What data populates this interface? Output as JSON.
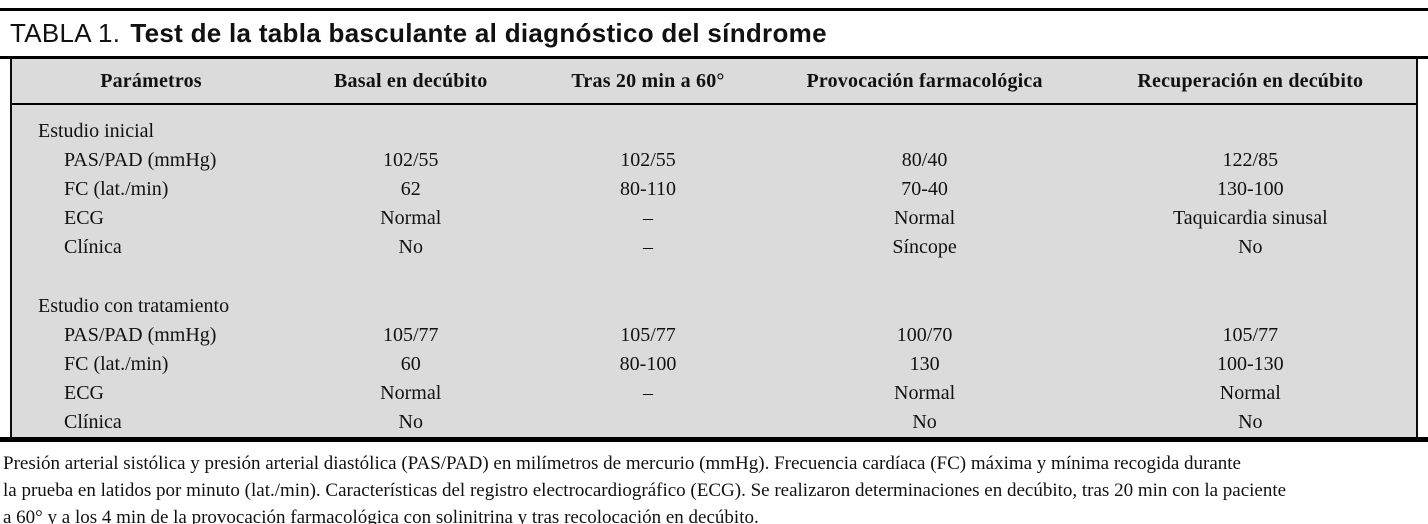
{
  "title": {
    "label": "TABLA 1.",
    "text": "Test de la tabla basculante al diagnóstico del síndrome"
  },
  "table": {
    "headers": [
      "Parámetros",
      "Basal en decúbito",
      "Tras 20 min a 60°",
      "Provocación farmacológica",
      "Recuperación en decúbito"
    ],
    "rows": [
      {
        "type": "section",
        "c0": "Estudio inicial",
        "c1": "",
        "c2": "",
        "c3": "",
        "c4": ""
      },
      {
        "type": "item",
        "c0": "PAS/PAD (mmHg)",
        "c1": "102/55",
        "c2": "102/55",
        "c3": "80/40",
        "c4": "122/85"
      },
      {
        "type": "item",
        "c0": "FC (lat./min)",
        "c1": "62",
        "c2": "80-110",
        "c3": "70-40",
        "c4": "130-100"
      },
      {
        "type": "item",
        "c0": "ECG",
        "c1": "Normal",
        "c2": "–",
        "c3": "Normal",
        "c4": "Taquicardia sinusal"
      },
      {
        "type": "item",
        "c0": "Clínica",
        "c1": "No",
        "c2": "–",
        "c3": "Síncope",
        "c4": "No"
      },
      {
        "type": "spacer",
        "c0": "",
        "c1": "",
        "c2": "",
        "c3": "",
        "c4": ""
      },
      {
        "type": "section",
        "c0": "Estudio con tratamiento",
        "c1": "",
        "c2": "",
        "c3": "",
        "c4": ""
      },
      {
        "type": "item",
        "c0": "PAS/PAD (mmHg)",
        "c1": "105/77",
        "c2": "105/77",
        "c3": "100/70",
        "c4": "105/77"
      },
      {
        "type": "item",
        "c0": "FC (lat./min)",
        "c1": "60",
        "c2": "80-100",
        "c3": "130",
        "c4": "100-130"
      },
      {
        "type": "item",
        "c0": "ECG",
        "c1": "Normal",
        "c2": "–",
        "c3": "Normal",
        "c4": "Normal"
      },
      {
        "type": "item",
        "c0": "Clínica",
        "c1": "No",
        "c2": "",
        "c3": "No",
        "c4": "No"
      }
    ]
  },
  "footnote": {
    "lines": [
      "Presión arterial sistólica y presión arterial diastólica (PAS/PAD) en milímetros de mercurio (mmHg). Frecuencia cardíaca (FC) máxima y mínima recogida durante",
      "la prueba en latidos por minuto (lat./min). Características del registro electrocardiográfico (ECG). Se realizaron determinaciones en decúbito, tras 20 min con la paciente",
      "a 60° y a los 4 min de la provocación farmacológica con solinitrina y tras recolocación en decúbito."
    ]
  },
  "colors": {
    "table_background": "#dcdbdc",
    "rule": "#000000",
    "text": "#111111"
  }
}
